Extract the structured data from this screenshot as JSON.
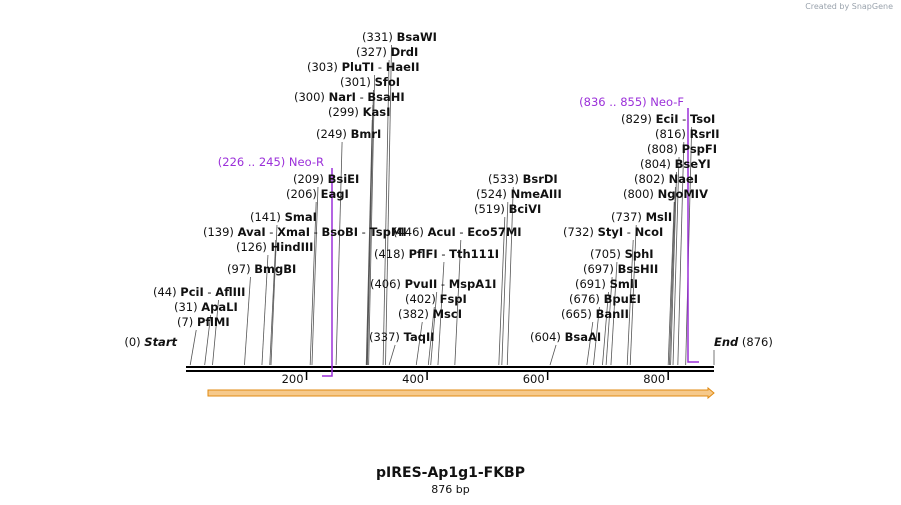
{
  "credit": "Created by SnapGene",
  "title": "pIRES-Ap1g1-FKBP",
  "length_label": "876 bp",
  "sequence_length": 876,
  "colors": {
    "primer": "#9b30d9",
    "feature_fill": "#f6c98b",
    "feature_stroke": "#e08a10",
    "backbone": "#000000"
  },
  "axis_ticks": [
    {
      "pos": 200,
      "label": "200"
    },
    {
      "pos": 400,
      "label": "400"
    },
    {
      "pos": 600,
      "label": "600"
    },
    {
      "pos": 800,
      "label": "800"
    }
  ],
  "ends": {
    "start": {
      "pos": "(0)",
      "label": "Start"
    },
    "end": {
      "pos": "(876)",
      "label": "End"
    }
  },
  "sites": [
    {
      "pos": "(7)",
      "names": [
        "PflMI"
      ]
    },
    {
      "pos": "(31)",
      "names": [
        "ApaLI"
      ]
    },
    {
      "pos": "(44)",
      "names": [
        "PciI",
        "AflIII"
      ]
    },
    {
      "pos": "(97)",
      "names": [
        "BmgBI"
      ]
    },
    {
      "pos": "(126)",
      "names": [
        "HindIII"
      ]
    },
    {
      "pos": "(139)",
      "names": [
        "AvaI",
        "XmaI",
        "BsoBI",
        "TspMI"
      ]
    },
    {
      "pos": "(141)",
      "names": [
        "SmaI"
      ]
    },
    {
      "pos": "(206)",
      "names": [
        "EagI"
      ]
    },
    {
      "pos": "(209)",
      "names": [
        "BsiEI"
      ]
    },
    {
      "pos": "(249)",
      "names": [
        "BmrI"
      ]
    },
    {
      "pos": "(299)",
      "names": [
        "KasI"
      ]
    },
    {
      "pos": "(300)",
      "names": [
        "NarI",
        "BsaHI"
      ]
    },
    {
      "pos": "(301)",
      "names": [
        "SfoI"
      ]
    },
    {
      "pos": "(303)",
      "names": [
        "PluTI",
        "HaeII"
      ]
    },
    {
      "pos": "(327)",
      "names": [
        "DrdI"
      ]
    },
    {
      "pos": "(331)",
      "names": [
        "BsaWI"
      ]
    },
    {
      "pos": "(337)",
      "names": [
        "TaqII"
      ]
    },
    {
      "pos": "(382)",
      "names": [
        "MscI"
      ]
    },
    {
      "pos": "(402)",
      "names": [
        "FspI"
      ]
    },
    {
      "pos": "(406)",
      "names": [
        "PvuII",
        "MspA1I"
      ]
    },
    {
      "pos": "(418)",
      "names": [
        "PflFI",
        "Tth111I"
      ]
    },
    {
      "pos": "(446)",
      "names": [
        "AcuI",
        "Eco57MI"
      ]
    },
    {
      "pos": "(519)",
      "names": [
        "BciVI"
      ]
    },
    {
      "pos": "(524)",
      "names": [
        "NmeAIII"
      ]
    },
    {
      "pos": "(533)",
      "names": [
        "BsrDI"
      ]
    },
    {
      "pos": "(604)",
      "names": [
        "BsaAI"
      ]
    },
    {
      "pos": "(665)",
      "names": [
        "BanII"
      ]
    },
    {
      "pos": "(676)",
      "names": [
        "BpuEI"
      ]
    },
    {
      "pos": "(691)",
      "names": [
        "SmlI"
      ]
    },
    {
      "pos": "(697)",
      "names": [
        "BssHII"
      ]
    },
    {
      "pos": "(705)",
      "names": [
        "SphI"
      ]
    },
    {
      "pos": "(732)",
      "names": [
        "StyI",
        "NcoI"
      ]
    },
    {
      "pos": "(737)",
      "names": [
        "MslI"
      ]
    },
    {
      "pos": "(800)",
      "names": [
        "NgoMIV"
      ]
    },
    {
      "pos": "(802)",
      "names": [
        "NaeI"
      ]
    },
    {
      "pos": "(804)",
      "names": [
        "BseYI"
      ]
    },
    {
      "pos": "(808)",
      "names": [
        "PspFI"
      ]
    },
    {
      "pos": "(816)",
      "names": [
        "RsrII"
      ]
    },
    {
      "pos": "(829)",
      "names": [
        "EciI",
        "TsoI"
      ]
    }
  ],
  "primers": [
    {
      "range": "(226 .. 245)",
      "name": "Neo-R",
      "direction": "reverse"
    },
    {
      "range": "(836 .. 855)",
      "name": "Neo-F",
      "direction": "forward"
    }
  ],
  "feature": {
    "name": "",
    "direction": "forward"
  }
}
